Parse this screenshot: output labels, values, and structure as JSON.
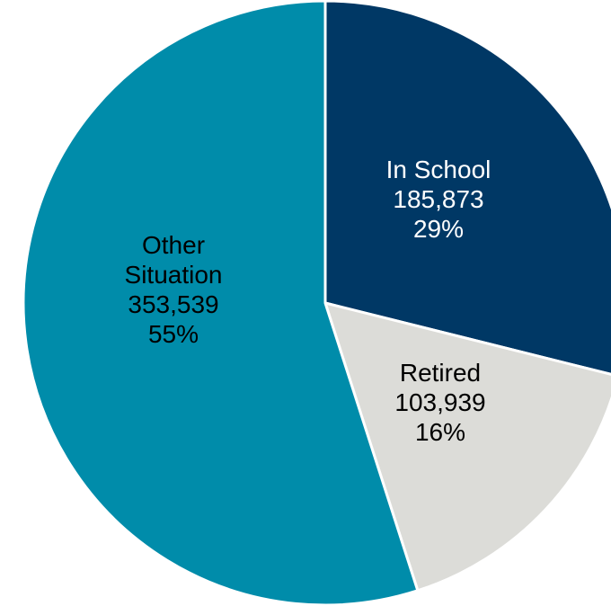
{
  "chart_data": {
    "type": "pie",
    "title": "",
    "slices": [
      {
        "label": "In School",
        "value": 185873,
        "value_text": "185,873",
        "percent": 29,
        "percent_text": "29%",
        "color": "#003865",
        "text_color": "#ffffff"
      },
      {
        "label": "Retired",
        "value": 103939,
        "value_text": "103,939",
        "percent": 16,
        "percent_text": "16%",
        "color": "#dcdcd8",
        "text_color": "#000000"
      },
      {
        "label": "Other Situation",
        "label_lines": [
          "Other",
          "Situation"
        ],
        "value": 353539,
        "value_text": "353,539",
        "percent": 55,
        "percent_text": "55%",
        "color": "#008caa",
        "text_color": "#000000"
      }
    ],
    "start_angle_deg": 0,
    "direction": "clockwise",
    "legend": "none",
    "slice_border_color": "#ffffff"
  }
}
